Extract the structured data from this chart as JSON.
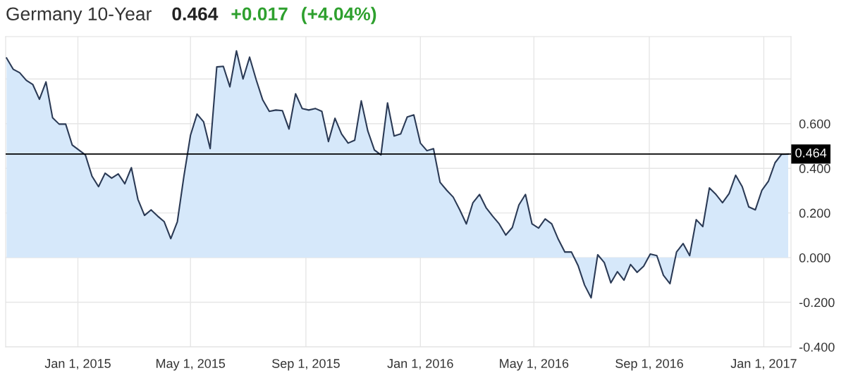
{
  "chart_data": {
    "type": "area",
    "title": "Germany 10-Year",
    "annotations": [
      "0.464",
      "+0.017",
      "(+4.04%)"
    ],
    "x": [
      "2014-10-17",
      "2014-10-24",
      "2014-10-31",
      "2014-11-07",
      "2014-11-14",
      "2014-11-21",
      "2014-11-28",
      "2014-12-05",
      "2014-12-12",
      "2014-12-19",
      "2014-12-26",
      "2015-01-02",
      "2015-01-09",
      "2015-01-16",
      "2015-01-23",
      "2015-01-30",
      "2015-02-06",
      "2015-02-13",
      "2015-02-20",
      "2015-02-27",
      "2015-03-06",
      "2015-03-13",
      "2015-03-20",
      "2015-03-27",
      "2015-04-03",
      "2015-04-10",
      "2015-04-17",
      "2015-04-24",
      "2015-05-01",
      "2015-05-08",
      "2015-05-15",
      "2015-05-22",
      "2015-05-29",
      "2015-06-05",
      "2015-06-12",
      "2015-06-19",
      "2015-06-26",
      "2015-07-03",
      "2015-07-10",
      "2015-07-17",
      "2015-07-24",
      "2015-07-31",
      "2015-08-07",
      "2015-08-14",
      "2015-08-21",
      "2015-08-28",
      "2015-09-04",
      "2015-09-11",
      "2015-09-18",
      "2015-09-25",
      "2015-10-02",
      "2015-10-09",
      "2015-10-16",
      "2015-10-23",
      "2015-10-30",
      "2015-11-06",
      "2015-11-13",
      "2015-11-20",
      "2015-11-27",
      "2015-12-04",
      "2015-12-11",
      "2015-12-18",
      "2015-12-25",
      "2016-01-01",
      "2016-01-08",
      "2016-01-15",
      "2016-01-22",
      "2016-01-29",
      "2016-02-05",
      "2016-02-12",
      "2016-02-19",
      "2016-02-26",
      "2016-03-04",
      "2016-03-11",
      "2016-03-18",
      "2016-03-25",
      "2016-04-01",
      "2016-04-08",
      "2016-04-15",
      "2016-04-22",
      "2016-04-29",
      "2016-05-06",
      "2016-05-13",
      "2016-05-20",
      "2016-05-27",
      "2016-06-03",
      "2016-06-10",
      "2016-06-17",
      "2016-06-24",
      "2016-07-01",
      "2016-07-08",
      "2016-07-15",
      "2016-07-22",
      "2016-07-29",
      "2016-08-05",
      "2016-08-12",
      "2016-08-19",
      "2016-08-26",
      "2016-09-02",
      "2016-09-09",
      "2016-09-16",
      "2016-09-23",
      "2016-09-30",
      "2016-10-07",
      "2016-10-14",
      "2016-10-21",
      "2016-10-28",
      "2016-11-04",
      "2016-11-11",
      "2016-11-18",
      "2016-11-25",
      "2016-12-02",
      "2016-12-09",
      "2016-12-16",
      "2016-12-23",
      "2016-12-30",
      "2017-01-06",
      "2017-01-13",
      "2017-01-20",
      "2017-01-27"
    ],
    "series": [
      {
        "color": "#d6e8fa",
        "values": [
          0.894,
          0.844,
          0.828,
          0.794,
          0.775,
          0.709,
          0.787,
          0.627,
          0.598,
          0.598,
          0.504,
          0.482,
          0.46,
          0.365,
          0.318,
          0.378,
          0.356,
          0.375,
          0.331,
          0.403,
          0.261,
          0.189,
          0.214,
          0.186,
          0.161,
          0.085,
          0.161,
          0.365,
          0.548,
          0.643,
          0.608,
          0.488,
          0.854,
          0.857,
          0.765,
          0.926,
          0.8,
          0.898,
          0.797,
          0.706,
          0.655,
          0.661,
          0.658,
          0.576,
          0.734,
          0.668,
          0.661,
          0.668,
          0.655,
          0.52,
          0.624,
          0.554,
          0.513,
          0.526,
          0.702,
          0.567,
          0.482,
          0.46,
          0.693,
          0.545,
          0.554,
          0.63,
          0.639,
          0.513,
          0.479,
          0.488,
          0.337,
          0.302,
          0.271,
          0.214,
          0.151,
          0.246,
          0.283,
          0.224,
          0.186,
          0.151,
          0.101,
          0.135,
          0.236,
          0.283,
          0.151,
          0.132,
          0.173,
          0.151,
          0.082,
          0.025,
          0.025,
          -0.035,
          -0.123,
          -0.18,
          0.013,
          -0.022,
          -0.113,
          -0.063,
          -0.101,
          -0.031,
          -0.066,
          -0.038,
          0.016,
          0.009,
          -0.079,
          -0.117,
          0.025,
          0.063,
          0.009,
          0.17,
          0.139,
          0.312,
          0.283,
          0.246,
          0.287,
          0.369,
          0.318,
          0.227,
          0.214,
          0.302,
          0.343,
          0.425,
          0.463,
          0.464
        ]
      }
    ],
    "xlim": [
      "2014-10-16",
      "2017-01-30"
    ],
    "xticks": [
      {
        "value": "2015-01-01",
        "label": "Jan 1, 2015"
      },
      {
        "value": "2015-05-01",
        "label": "May 1, 2015"
      },
      {
        "value": "2015-09-01",
        "label": "Sep 1, 2015"
      },
      {
        "value": "2016-01-01",
        "label": "Jan 1, 2016"
      },
      {
        "value": "2016-05-01",
        "label": "May 1, 2016"
      },
      {
        "value": "2016-09-01",
        "label": "Sep 1, 2016"
      },
      {
        "value": "2017-01-01",
        "label": "Jan 1, 2017"
      }
    ],
    "ylim": [
      -0.4,
      0.99
    ],
    "yticks": [
      {
        "value": -0.4,
        "label": "-0.400"
      },
      {
        "value": -0.2,
        "label": "-0.200"
      },
      {
        "value": 0,
        "label": "0.000"
      },
      {
        "value": 0.2,
        "label": "0.200"
      },
      {
        "value": 0.4,
        "label": "0.400"
      },
      {
        "value": 0.6,
        "label": "0.600"
      },
      {
        "value": 0.8,
        "label": null
      }
    ],
    "ref_lines": [
      {
        "axis": "y",
        "value": 0.464,
        "label": "0.464",
        "color": "#000000"
      }
    ],
    "grid": true,
    "legend": false,
    "marker": "none",
    "line_style": "solid"
  }
}
